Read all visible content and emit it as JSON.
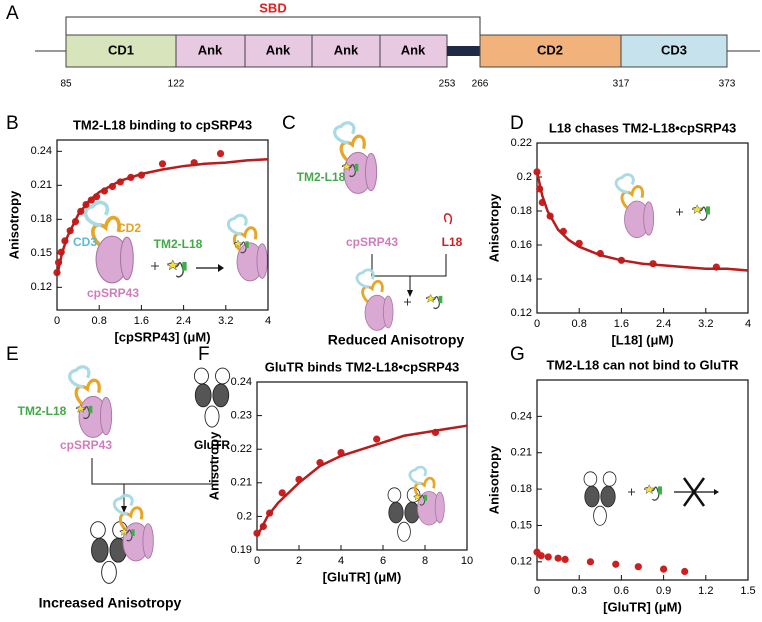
{
  "panel_labels": [
    "A",
    "B",
    "C",
    "D",
    "E",
    "F",
    "G"
  ],
  "domain_map": {
    "bracket_label": "SBD",
    "domains": [
      "CD1",
      "Ank",
      "Ank",
      "Ank",
      "Ank",
      "CD2",
      "CD3"
    ],
    "residues": [
      85,
      122,
      253,
      266,
      317,
      373
    ]
  },
  "cartoon_b": {
    "labels": [
      "CD3",
      "CD2",
      "TM2-L18",
      "cpSRP43"
    ]
  },
  "cartoon_c": {
    "labels": [
      "TM2-L18",
      "cpSRP43",
      "L18"
    ],
    "caption": "Reduced Anisotropy"
  },
  "cartoon_e": {
    "labels": [
      "TM2-L18",
      "cpSRP43",
      "GluTR"
    ],
    "caption": "Increased Anisotropy"
  },
  "chart_data": [
    {
      "type": "scatter",
      "title": "TM2-L18 binding to cpSRP43",
      "x_label": "[cpSRP43] (μM)",
      "y_label": "Anisotropy",
      "xlim": [
        0,
        4
      ],
      "xticks": [
        0,
        0.8,
        1.6,
        2.4,
        3.2,
        4
      ],
      "ylim": [
        0.1,
        0.25
      ],
      "yticks": [
        0.12,
        0.15,
        0.18,
        0.21,
        0.24
      ],
      "series": [
        {
          "mode": "points",
          "color": "#cc1f1f",
          "x": [
            0,
            0.03,
            0.08,
            0.15,
            0.25,
            0.35,
            0.45,
            0.55,
            0.65,
            0.75,
            0.9,
            1.05,
            1.2,
            1.4,
            1.6,
            2.0,
            2.6,
            3.1
          ],
          "values": [
            0.133,
            0.142,
            0.151,
            0.161,
            0.17,
            0.178,
            0.187,
            0.193,
            0.197,
            0.2,
            0.205,
            0.209,
            0.213,
            0.217,
            0.219,
            0.229,
            0.23,
            0.238
          ]
        },
        {
          "mode": "line",
          "color": "#b81c1c",
          "x": [
            0,
            0.1,
            0.2,
            0.4,
            0.6,
            0.8,
            1.2,
            1.6,
            2,
            2.4,
            2.8,
            3.2,
            3.6,
            4
          ],
          "values": [
            0.13,
            0.151,
            0.165,
            0.184,
            0.196,
            0.204,
            0.214,
            0.22,
            0.224,
            0.227,
            0.229,
            0.23,
            0.232,
            0.233
          ]
        }
      ]
    },
    {
      "type": "scatter",
      "title": "L18 chases TM2-L18•cpSRP43",
      "x_label": "[L18] (μM)",
      "y_label": "Anisotropy",
      "xlim": [
        0,
        4
      ],
      "xticks": [
        0,
        0.8,
        1.6,
        2.4,
        3.2,
        4
      ],
      "ylim": [
        0.12,
        0.22
      ],
      "yticks": [
        0.12,
        0.14,
        0.16,
        0.18,
        0.2,
        0.22
      ],
      "series": [
        {
          "mode": "points",
          "color": "#cc1f1f",
          "x": [
            0,
            0.05,
            0.1,
            0.25,
            0.5,
            0.8,
            1.2,
            1.6,
            2.2,
            3.4
          ],
          "values": [
            0.203,
            0.193,
            0.185,
            0.177,
            0.168,
            0.161,
            0.155,
            0.151,
            0.149,
            0.147
          ]
        },
        {
          "mode": "line",
          "color": "#b81c1c",
          "x": [
            0,
            0.1,
            0.2,
            0.4,
            0.6,
            0.8,
            1.2,
            1.6,
            2,
            2.4,
            2.8,
            3.2,
            3.6,
            4
          ],
          "values": [
            0.203,
            0.189,
            0.18,
            0.169,
            0.163,
            0.159,
            0.154,
            0.151,
            0.149,
            0.148,
            0.147,
            0.146,
            0.146,
            0.145
          ]
        }
      ]
    },
    {
      "type": "scatter",
      "title": "GluTR binds TM2-L18•cpSRP43",
      "x_label": "[GluTR] (μM)",
      "y_label": "Anisotropy",
      "xlim": [
        0,
        10
      ],
      "xticks": [
        0,
        2,
        4,
        6,
        8,
        10
      ],
      "ylim": [
        0.19,
        0.24
      ],
      "yticks": [
        0.19,
        0.2,
        0.21,
        0.22,
        0.23,
        0.24
      ],
      "series": [
        {
          "mode": "points",
          "color": "#cc1f1f",
          "x": [
            0,
            0.3,
            0.6,
            1.2,
            2,
            3,
            4,
            5.7,
            8.5
          ],
          "values": [
            0.195,
            0.197,
            0.201,
            0.207,
            0.211,
            0.216,
            0.219,
            0.223,
            0.225
          ]
        },
        {
          "mode": "line",
          "color": "#b81c1c",
          "x": [
            0,
            0.5,
            1,
            2,
            3,
            4,
            5,
            6,
            7,
            8,
            9,
            10
          ],
          "values": [
            0.194,
            0.2,
            0.204,
            0.21,
            0.215,
            0.218,
            0.22,
            0.222,
            0.224,
            0.225,
            0.226,
            0.227
          ]
        }
      ]
    },
    {
      "type": "scatter",
      "title": "TM2-L18 can not bind to GluTR",
      "x_label": "[GluTR] (μM)",
      "y_label": "Anisotropy",
      "xlim": [
        0,
        1.5
      ],
      "xticks": [
        0,
        0.3,
        0.6,
        0.9,
        1.2,
        1.5
      ],
      "ylim": [
        0.105,
        0.27
      ],
      "yticks": [
        0.12,
        0.15,
        0.18,
        0.21,
        0.24
      ],
      "series": [
        {
          "mode": "points",
          "color": "#cc1f1f",
          "x": [
            0,
            0.03,
            0.08,
            0.15,
            0.2,
            0.38,
            0.56,
            0.72,
            0.9,
            1.05
          ],
          "values": [
            0.128,
            0.125,
            0.124,
            0.123,
            0.122,
            0.12,
            0.118,
            0.116,
            0.114,
            0.112
          ]
        }
      ]
    }
  ]
}
